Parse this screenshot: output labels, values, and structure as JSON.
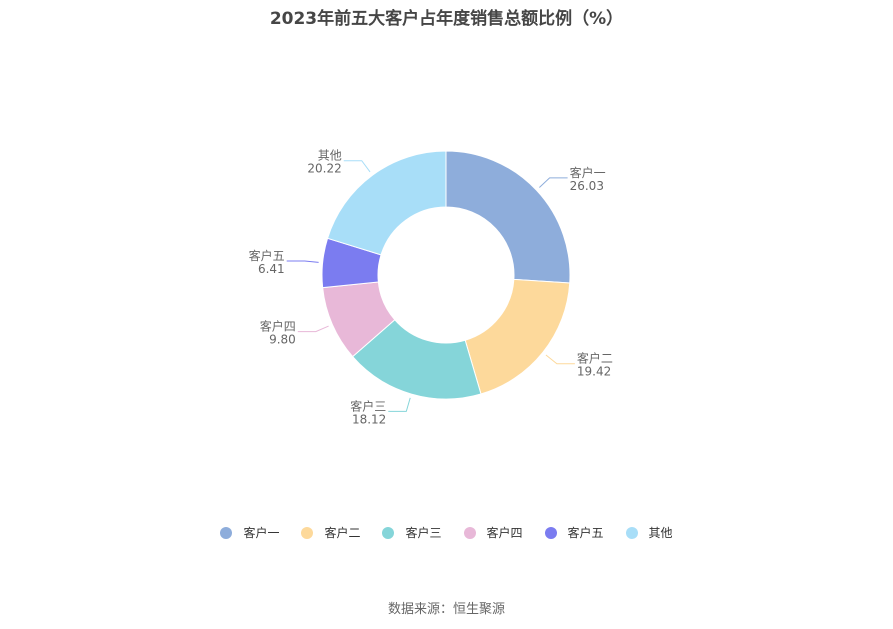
{
  "source_note": "数据来源：恒生聚源",
  "chart_data": {
    "type": "pie",
    "variant": "donut",
    "title": "2023年前五大客户占年度销售总额比例（%）",
    "legend_position": "bottom",
    "slices": [
      {
        "name": "客户一",
        "value": 26.03,
        "value_label": "26.03",
        "color": "#8eaddb"
      },
      {
        "name": "客户二",
        "value": 19.42,
        "value_label": "19.42",
        "color": "#fdd99b"
      },
      {
        "name": "客户三",
        "value": 18.12,
        "value_label": "18.12",
        "color": "#85d5d9"
      },
      {
        "name": "客户四",
        "value": 9.8,
        "value_label": "9.80",
        "color": "#e8b8d8"
      },
      {
        "name": "客户五",
        "value": 6.41,
        "value_label": "6.41",
        "color": "#7b7cf0"
      },
      {
        "name": "其他",
        "value": 20.22,
        "value_label": "20.22",
        "color": "#a8def8"
      }
    ]
  }
}
